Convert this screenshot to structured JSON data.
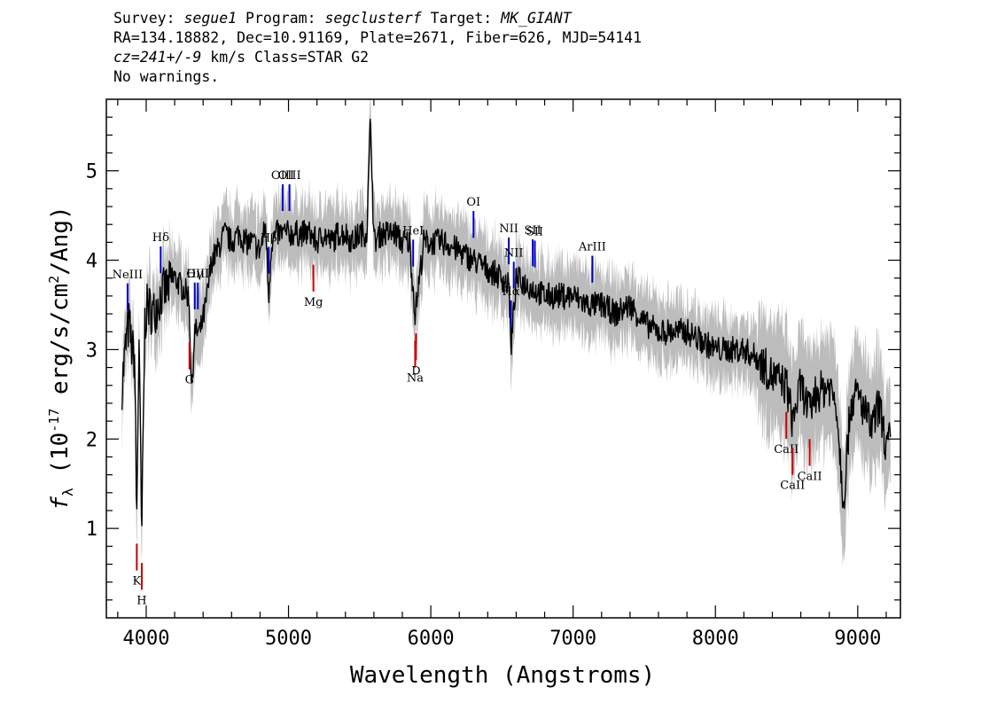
{
  "header": {
    "survey_key": "Survey:",
    "survey": "segue1",
    "program_key": "Program:",
    "program": "segclusterf",
    "target_key": "Target:",
    "target": "MK_GIANT",
    "line2": "RA=134.18882, Dec=10.91169, Plate=2671, Fiber=626, MJD=54141",
    "cz_key": "cz=",
    "cz_value": "241+/-9",
    "line3_rest": "km/s Class=STAR G2",
    "line4": "No warnings."
  },
  "chart_data": {
    "type": "line",
    "title": "",
    "xlabel": "Wavelength (Angstroms)",
    "ylabel": "f_λ (10^-17 erg/s/cm^2/Ang)",
    "xlim": [
      3720,
      9300
    ],
    "ylim": [
      0,
      5.8
    ],
    "xticks": [
      4000,
      5000,
      6000,
      7000,
      8000,
      9000
    ],
    "yticks": [
      1,
      2,
      3,
      4,
      5
    ],
    "grid": false,
    "legend": "none",
    "colors": {
      "flux": "#000000",
      "error_band": "#bcbcbc",
      "emission": "#0000cc",
      "absorption": "#cc0000"
    },
    "series": [
      {
        "name": "flux",
        "x": [
          3830,
          3860,
          3880,
          3900,
          3920,
          3933,
          3950,
          3968,
          3990,
          4010,
          4050,
          4100,
          4150,
          4200,
          4250,
          4300,
          4320,
          4340,
          4380,
          4420,
          4460,
          4500,
          4550,
          4600,
          4650,
          4700,
          4750,
          4800,
          4840,
          4861,
          4880,
          4920,
          4960,
          5000,
          5050,
          5100,
          5150,
          5200,
          5250,
          5300,
          5350,
          5400,
          5450,
          5500,
          5550,
          5577,
          5600,
          5650,
          5700,
          5750,
          5800,
          5850,
          5890,
          5950,
          6000,
          6100,
          6200,
          6300,
          6400,
          6500,
          6550,
          6563,
          6600,
          6700,
          6800,
          6900,
          7000,
          7100,
          7200,
          7300,
          7400,
          7500,
          7600,
          7700,
          7800,
          7900,
          8000,
          8100,
          8200,
          8300,
          8400,
          8500,
          8542,
          8600,
          8662,
          8700,
          8800,
          8850,
          8900,
          8950,
          9000,
          9100,
          9150,
          9200,
          9230
        ],
        "y": [
          2.6,
          3.1,
          3.3,
          3.0,
          2.9,
          1.0,
          3.2,
          0.8,
          3.3,
          3.5,
          3.4,
          3.6,
          3.7,
          3.8,
          3.7,
          3.6,
          2.5,
          3.2,
          3.2,
          3.5,
          4.0,
          4.1,
          4.3,
          4.2,
          4.3,
          4.2,
          4.2,
          4.1,
          4.4,
          3.6,
          4.2,
          4.3,
          4.3,
          4.3,
          4.3,
          4.3,
          4.3,
          4.2,
          4.3,
          4.2,
          4.3,
          4.3,
          4.2,
          4.3,
          4.3,
          5.6,
          4.2,
          4.3,
          4.3,
          4.3,
          4.2,
          4.2,
          3.4,
          4.2,
          4.2,
          4.2,
          4.1,
          4.0,
          3.9,
          3.8,
          3.7,
          3.0,
          3.8,
          3.7,
          3.6,
          3.6,
          3.6,
          3.5,
          3.5,
          3.4,
          3.5,
          3.3,
          3.2,
          3.2,
          3.2,
          3.1,
          3.0,
          3.0,
          3.0,
          2.9,
          2.7,
          2.6,
          2.2,
          2.6,
          2.3,
          2.5,
          2.6,
          2.4,
          1.3,
          2.4,
          2.5,
          2.1,
          2.4,
          1.9,
          2.0
        ]
      }
    ],
    "emission_lines": [
      {
        "label": "NeIII",
        "x": 3869
      },
      {
        "label": "Hδ",
        "x": 4102
      },
      {
        "label": "Hγ",
        "x": 4341
      },
      {
        "label": "OIII",
        "x": 4363
      },
      {
        "label": "Hβ",
        "x": 4861
      },
      {
        "label": "OIII",
        "x": 4959
      },
      {
        "label": "OIII",
        "x": 5007
      },
      {
        "label": "HeI",
        "x": 5876
      },
      {
        "label": "OI",
        "x": 6300
      },
      {
        "label": "NII",
        "x": 6548
      },
      {
        "label": "Hα",
        "x": 6563
      },
      {
        "label": "NII",
        "x": 6583
      },
      {
        "label": "SII",
        "x": 6716
      },
      {
        "label": "SII",
        "x": 6731
      },
      {
        "label": "ArIII",
        "x": 7135
      }
    ],
    "absorption_lines": [
      {
        "label": "K",
        "x": 3934
      },
      {
        "label": "H",
        "x": 3969
      },
      {
        "label": "G",
        "x": 4304
      },
      {
        "label": "Mg",
        "x": 5175
      },
      {
        "label": "Na",
        "x": 5890
      },
      {
        "label": "D",
        "x": 5896
      },
      {
        "label": "CaII",
        "x": 8498
      },
      {
        "label": "CaII",
        "x": 8542
      },
      {
        "label": "CaII",
        "x": 8662
      }
    ]
  }
}
